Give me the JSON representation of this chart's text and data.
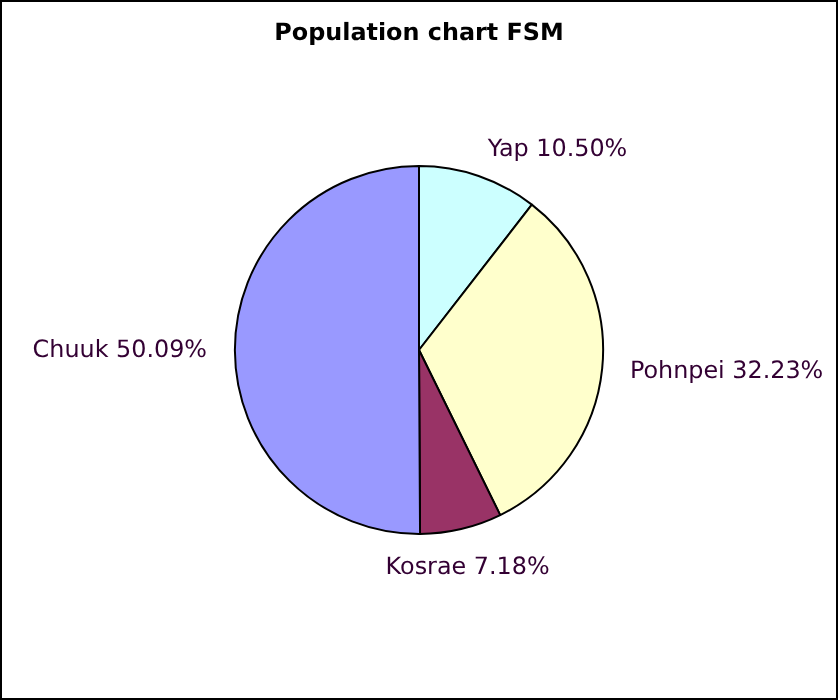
{
  "chart_data": {
    "type": "pie",
    "title": "Population chart FSM",
    "categories": [
      "Yap",
      "Pohnpei",
      "Kosrae",
      "Chuuk"
    ],
    "values": [
      10.5,
      32.23,
      7.18,
      50.09
    ],
    "colors": [
      "#ccffff",
      "#ffffcc",
      "#993366",
      "#9999ff"
    ],
    "value_labels": [
      "10.50%",
      "32.23%",
      "7.18%",
      "50.09%"
    ],
    "legend": false
  }
}
